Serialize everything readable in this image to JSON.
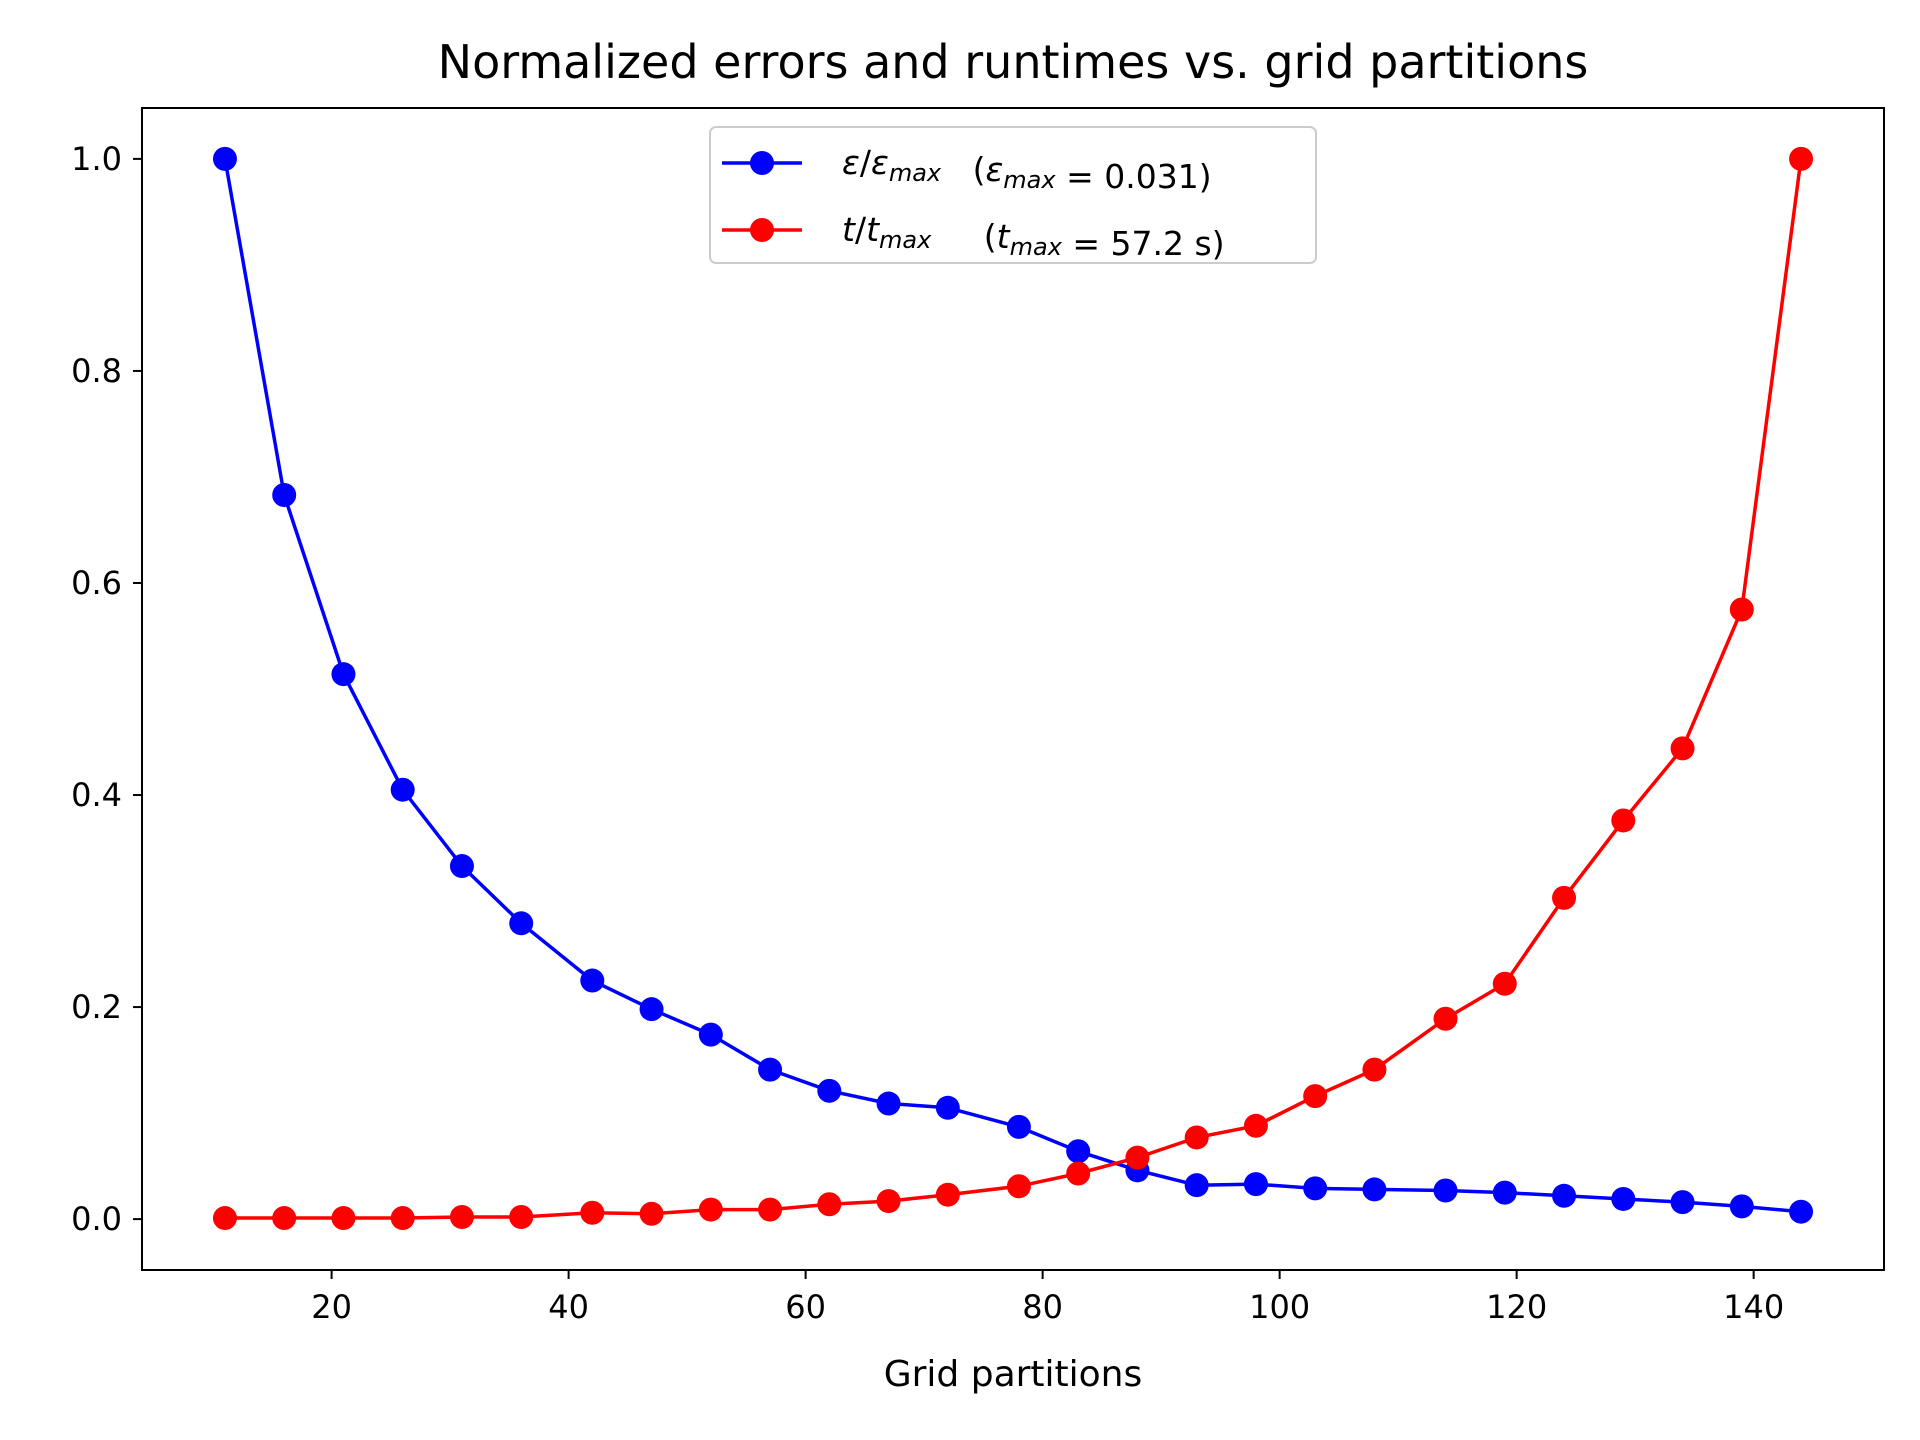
{
  "chart_data": {
    "type": "line",
    "title": "Normalized errors and runtimes vs. grid partitions",
    "xlabel": "Grid partitions",
    "ylabel": "",
    "xlim": [
      4,
      151
    ],
    "ylim": [
      -0.048,
      1.048
    ],
    "xticks": [
      20,
      40,
      60,
      80,
      100,
      120,
      140
    ],
    "yticks": [
      0.0,
      0.2,
      0.4,
      0.6,
      0.8,
      1.0
    ],
    "xtick_labels": [
      "20",
      "40",
      "60",
      "80",
      "100",
      "120",
      "140"
    ],
    "ytick_labels": [
      "0.0",
      "0.2",
      "0.4",
      "0.6",
      "0.8",
      "1.0"
    ],
    "grid": false,
    "legend": "upper-center",
    "x": [
      11,
      16,
      21,
      26,
      31,
      36,
      42,
      47,
      52,
      57,
      62,
      67,
      72,
      78,
      83,
      88,
      93,
      98,
      103,
      108,
      114,
      119,
      124,
      129,
      134,
      139,
      144
    ],
    "series": [
      {
        "legend_label": "ε/εmax   (εmax = 0.031)",
        "color": "#0000ff",
        "values": [
          1.0,
          0.683,
          0.514,
          0.405,
          0.333,
          0.279,
          0.225,
          0.198,
          0.174,
          0.141,
          0.121,
          0.109,
          0.105,
          0.087,
          0.064,
          0.046,
          0.032,
          0.033,
          0.029,
          0.028,
          0.027,
          0.025,
          0.022,
          0.019,
          0.016,
          0.012,
          0.007
        ]
      },
      {
        "legend_label": "t/tmax    (tmax = 57.2 s)",
        "color": "#ff0000",
        "values": [
          0.001,
          0.001,
          0.001,
          0.001,
          0.002,
          0.002,
          0.006,
          0.005,
          0.009,
          0.009,
          0.014,
          0.017,
          0.023,
          0.031,
          0.043,
          0.058,
          0.077,
          0.088,
          0.116,
          0.141,
          0.189,
          0.222,
          0.303,
          0.376,
          0.444,
          0.575,
          1.0
        ]
      }
    ]
  }
}
